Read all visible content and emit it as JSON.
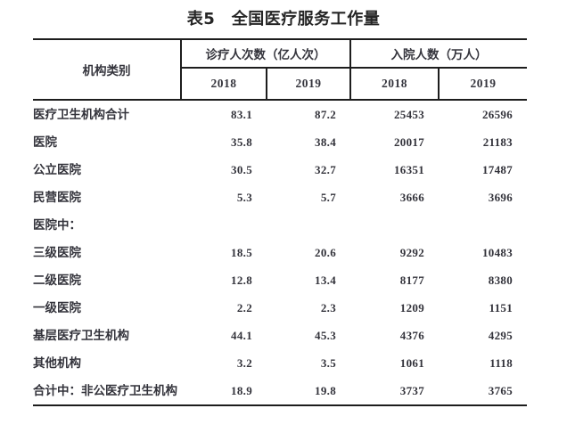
{
  "title": "表5　全国医疗服务工作量",
  "table": {
    "org_header": "机构类别",
    "groups": [
      {
        "label": "诊疗人次数（亿人次）",
        "years": [
          "2018",
          "2019"
        ]
      },
      {
        "label": "入院人数（万人）",
        "years": [
          "2018",
          "2019"
        ]
      }
    ],
    "rows": [
      {
        "label": "医疗卫生机构合计",
        "level": 0,
        "values": [
          "83.1",
          "87.2",
          "25453",
          "26596"
        ]
      },
      {
        "label": "医院",
        "level": 1,
        "values": [
          "35.8",
          "38.4",
          "20017",
          "21183"
        ]
      },
      {
        "label": "公立医院",
        "level": 2,
        "values": [
          "30.5",
          "32.7",
          "16351",
          "17487"
        ]
      },
      {
        "label": "民营医院",
        "level": 2,
        "values": [
          "5.3",
          "5.7",
          "3666",
          "3696"
        ]
      },
      {
        "label": "医院中：",
        "level": 1,
        "values": [
          "",
          "",
          "",
          ""
        ]
      },
      {
        "label": "三级医院",
        "level": 2,
        "values": [
          "18.5",
          "20.6",
          "9292",
          "10483"
        ]
      },
      {
        "label": "二级医院",
        "level": 2,
        "values": [
          "12.8",
          "13.4",
          "8177",
          "8380"
        ]
      },
      {
        "label": "一级医院",
        "level": 2,
        "values": [
          "2.2",
          "2.3",
          "1209",
          "1151"
        ]
      },
      {
        "label": "基层医疗卫生机构",
        "level": 1,
        "values": [
          "44.1",
          "45.3",
          "4376",
          "4295"
        ]
      },
      {
        "label": "其他机构",
        "level": 1,
        "values": [
          "3.2",
          "3.5",
          "1061",
          "1118"
        ]
      },
      {
        "label": "合计中：非公医疗卫生机构",
        "level": 0,
        "values": [
          "18.9",
          "19.8",
          "3737",
          "3765"
        ]
      }
    ]
  },
  "chart_data": {
    "type": "table",
    "title": "表5　全国医疗服务工作量",
    "columns": [
      "机构类别",
      "诊疗人次数（亿人次）2018",
      "诊疗人次数（亿人次）2019",
      "入院人数（万人）2018",
      "入院人数（万人）2019"
    ],
    "rows": [
      [
        "医疗卫生机构合计",
        83.1,
        87.2,
        25453,
        26596
      ],
      [
        "医院",
        35.8,
        38.4,
        20017,
        21183
      ],
      [
        "公立医院",
        30.5,
        32.7,
        16351,
        17487
      ],
      [
        "民营医院",
        5.3,
        5.7,
        3666,
        3696
      ],
      [
        "医院中：",
        null,
        null,
        null,
        null
      ],
      [
        "三级医院",
        18.5,
        20.6,
        9292,
        10483
      ],
      [
        "二级医院",
        12.8,
        13.4,
        8177,
        8380
      ],
      [
        "一级医院",
        2.2,
        2.3,
        1209,
        1151
      ],
      [
        "基层医疗卫生机构",
        44.1,
        45.3,
        4376,
        4295
      ],
      [
        "其他机构",
        3.2,
        3.5,
        1061,
        1118
      ],
      [
        "合计中：非公医疗卫生机构",
        18.9,
        19.8,
        3737,
        3765
      ]
    ]
  },
  "colors": {
    "text": "#33333b",
    "line": "#1d1d1d",
    "title": "#262626",
    "background": "#ffffff"
  }
}
